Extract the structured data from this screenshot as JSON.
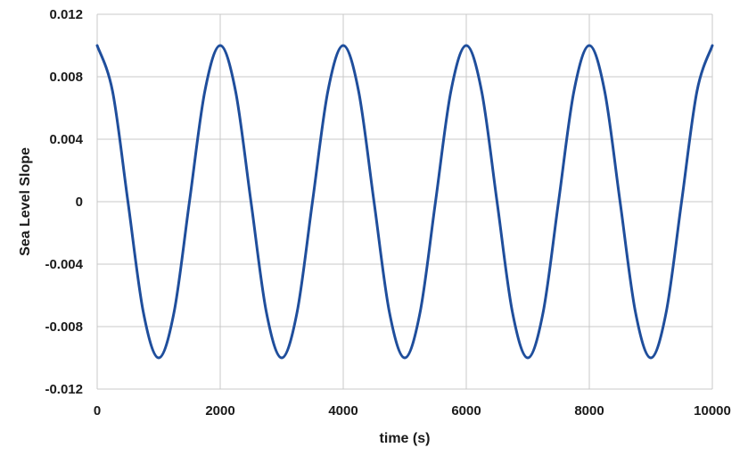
{
  "chart_data": {
    "type": "line",
    "title": "",
    "xlabel": "time (s)",
    "ylabel": "Sea Level Slope",
    "xlim": [
      0,
      10000
    ],
    "ylim": [
      -0.012,
      0.012
    ],
    "x_ticks": [
      0,
      2000,
      4000,
      6000,
      8000,
      10000
    ],
    "x_tick_labels": [
      "0",
      "2000",
      "4000",
      "6000",
      "8000",
      "10000"
    ],
    "y_ticks": [
      0.012,
      0.008,
      0.004,
      0,
      -0.004,
      -0.008,
      -0.012
    ],
    "y_tick_labels": [
      "0.012",
      "0.008",
      "0.004",
      "0",
      "-0.004",
      "-0.008",
      "-0.012"
    ],
    "grid": true,
    "legend": "none",
    "series": [
      {
        "color": "#1f4e9c",
        "x": [
          0,
          250,
          500,
          750,
          1000,
          1250,
          1500,
          1750,
          2000,
          2250,
          2500,
          2750,
          3000,
          3250,
          3500,
          3750,
          4000,
          4250,
          4500,
          4750,
          5000,
          5250,
          5500,
          5750,
          6000,
          6250,
          6500,
          6750,
          7000,
          7250,
          7500,
          7750,
          8000,
          8250,
          8500,
          8750,
          9000,
          9250,
          9500,
          9750,
          10000
        ],
        "y": [
          0.01,
          0.00707,
          0,
          -0.00707,
          -0.01,
          -0.00707,
          0,
          0.00707,
          0.01,
          0.00707,
          0,
          -0.00707,
          -0.01,
          -0.00707,
          0,
          0.00707,
          0.01,
          0.00707,
          0,
          -0.00707,
          -0.01,
          -0.00707,
          0,
          0.00707,
          0.01,
          0.00707,
          0,
          -0.00707,
          -0.01,
          -0.00707,
          0,
          0.00707,
          0.01,
          0.00707,
          0,
          -0.00707,
          -0.01,
          -0.00707,
          0,
          0.00707,
          0.01
        ]
      }
    ]
  }
}
